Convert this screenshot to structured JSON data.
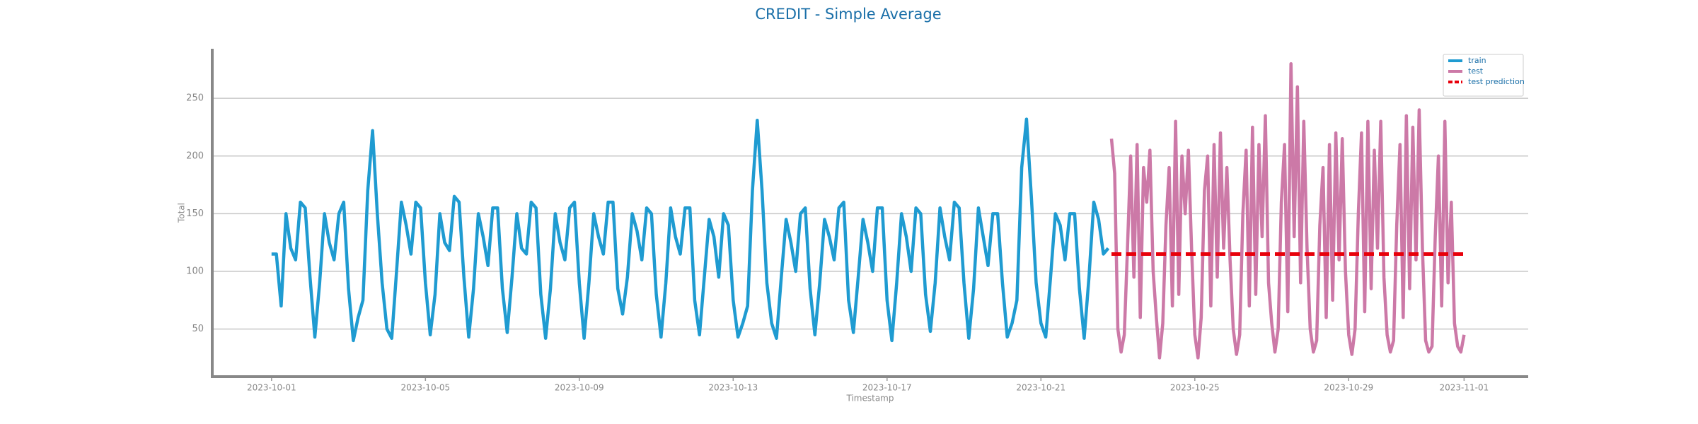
{
  "chart_data": {
    "type": "line",
    "title": "CREDIT - Simple Average",
    "xlabel": "Timestamp",
    "ylabel": "Total",
    "xlim": [
      "2023-09-29 11:00",
      "2023-11-02 16:00"
    ],
    "ylim": [
      8.7,
      293
    ],
    "xticks": [
      "2023-10-01",
      "2023-10-05",
      "2023-10-09",
      "2023-10-13",
      "2023-10-17",
      "2023-10-21",
      "2023-10-25",
      "2023-10-29",
      "2023-11-01"
    ],
    "yticks": [
      50,
      100,
      150,
      200,
      250
    ],
    "grid": true,
    "legend": "upper right",
    "series": [
      {
        "name": "train",
        "color": "#1f9bd1",
        "dash": false,
        "x": [
          "2023-10-01 00:00",
          "2023-10-01 03:00",
          "2023-10-01 06:00",
          "2023-10-01 09:00",
          "2023-10-01 12:00",
          "2023-10-01 15:00",
          "2023-10-01 18:00",
          "2023-10-01 21:00",
          "2023-10-02 00:00",
          "2023-10-02 03:00",
          "2023-10-02 06:00",
          "2023-10-02 09:00",
          "2023-10-02 12:00",
          "2023-10-02 15:00",
          "2023-10-02 18:00",
          "2023-10-02 21:00",
          "2023-10-03 00:00",
          "2023-10-03 03:00",
          "2023-10-03 06:00",
          "2023-10-03 09:00",
          "2023-10-03 12:00",
          "2023-10-03 15:00",
          "2023-10-03 18:00",
          "2023-10-03 21:00",
          "2023-10-04 00:00",
          "2023-10-04 03:00",
          "2023-10-04 06:00",
          "2023-10-04 09:00",
          "2023-10-04 12:00",
          "2023-10-04 15:00",
          "2023-10-04 18:00",
          "2023-10-04 21:00",
          "2023-10-05 00:00",
          "2023-10-05 03:00",
          "2023-10-05 06:00",
          "2023-10-05 09:00",
          "2023-10-05 12:00",
          "2023-10-05 15:00",
          "2023-10-05 18:00",
          "2023-10-05 21:00",
          "2023-10-06 00:00",
          "2023-10-06 03:00",
          "2023-10-06 06:00",
          "2023-10-06 09:00",
          "2023-10-06 12:00",
          "2023-10-06 15:00",
          "2023-10-06 18:00",
          "2023-10-06 21:00",
          "2023-10-07 00:00",
          "2023-10-07 03:00",
          "2023-10-07 06:00",
          "2023-10-07 09:00",
          "2023-10-07 12:00",
          "2023-10-07 15:00",
          "2023-10-07 18:00",
          "2023-10-07 21:00",
          "2023-10-08 00:00",
          "2023-10-08 03:00",
          "2023-10-08 06:00",
          "2023-10-08 09:00",
          "2023-10-08 12:00",
          "2023-10-08 15:00",
          "2023-10-08 18:00",
          "2023-10-08 21:00",
          "2023-10-09 00:00",
          "2023-10-09 03:00",
          "2023-10-09 06:00",
          "2023-10-09 09:00",
          "2023-10-09 12:00",
          "2023-10-09 15:00",
          "2023-10-09 18:00",
          "2023-10-09 21:00",
          "2023-10-10 00:00",
          "2023-10-10 03:00",
          "2023-10-10 06:00",
          "2023-10-10 09:00",
          "2023-10-10 12:00",
          "2023-10-10 15:00",
          "2023-10-10 18:00",
          "2023-10-10 21:00",
          "2023-10-11 00:00",
          "2023-10-11 03:00",
          "2023-10-11 06:00",
          "2023-10-11 09:00",
          "2023-10-11 12:00",
          "2023-10-11 15:00",
          "2023-10-11 18:00",
          "2023-10-11 21:00",
          "2023-10-12 00:00",
          "2023-10-12 03:00",
          "2023-10-12 06:00",
          "2023-10-12 09:00",
          "2023-10-12 12:00",
          "2023-10-12 15:00",
          "2023-10-12 18:00",
          "2023-10-12 21:00",
          "2023-10-13 00:00",
          "2023-10-13 03:00",
          "2023-10-13 06:00",
          "2023-10-13 09:00",
          "2023-10-13 12:00",
          "2023-10-13 15:00",
          "2023-10-13 18:00",
          "2023-10-13 21:00",
          "2023-10-14 00:00",
          "2023-10-14 03:00",
          "2023-10-14 06:00",
          "2023-10-14 09:00",
          "2023-10-14 12:00",
          "2023-10-14 15:00",
          "2023-10-14 18:00",
          "2023-10-14 21:00",
          "2023-10-15 00:00",
          "2023-10-15 03:00",
          "2023-10-15 06:00",
          "2023-10-15 09:00",
          "2023-10-15 12:00",
          "2023-10-15 15:00",
          "2023-10-15 18:00",
          "2023-10-15 21:00",
          "2023-10-16 00:00",
          "2023-10-16 03:00",
          "2023-10-16 06:00",
          "2023-10-16 09:00",
          "2023-10-16 12:00",
          "2023-10-16 15:00",
          "2023-10-16 18:00",
          "2023-10-16 21:00",
          "2023-10-17 00:00",
          "2023-10-17 03:00",
          "2023-10-17 06:00",
          "2023-10-17 09:00",
          "2023-10-17 12:00",
          "2023-10-17 15:00",
          "2023-10-17 18:00",
          "2023-10-17 21:00",
          "2023-10-18 00:00",
          "2023-10-18 03:00",
          "2023-10-18 06:00",
          "2023-10-18 09:00",
          "2023-10-18 12:00",
          "2023-10-18 15:00",
          "2023-10-18 18:00",
          "2023-10-18 21:00",
          "2023-10-19 00:00",
          "2023-10-19 03:00",
          "2023-10-19 06:00",
          "2023-10-19 09:00",
          "2023-10-19 12:00",
          "2023-10-19 15:00",
          "2023-10-19 18:00",
          "2023-10-19 21:00",
          "2023-10-20 00:00",
          "2023-10-20 03:00",
          "2023-10-20 06:00",
          "2023-10-20 09:00",
          "2023-10-20 12:00",
          "2023-10-20 15:00",
          "2023-10-20 18:00",
          "2023-10-20 21:00",
          "2023-10-21 00:00",
          "2023-10-21 03:00",
          "2023-10-21 06:00",
          "2023-10-21 09:00",
          "2023-10-21 12:00",
          "2023-10-21 15:00",
          "2023-10-21 18:00",
          "2023-10-21 21:00",
          "2023-10-22 00:00",
          "2023-10-22 03:00",
          "2023-10-22 06:00",
          "2023-10-22 09:00",
          "2023-10-22 12:00",
          "2023-10-22 15:00",
          "2023-10-22 18:00"
        ],
        "values": [
          115,
          115,
          70,
          150,
          120,
          110,
          160,
          155,
          95,
          43,
          90,
          150,
          125,
          110,
          150,
          160,
          85,
          40,
          60,
          75,
          170,
          222,
          150,
          90,
          50,
          42,
          100,
          160,
          140,
          115,
          160,
          155,
          90,
          45,
          80,
          150,
          125,
          118,
          165,
          160,
          95,
          43,
          85,
          150,
          130,
          105,
          155,
          155,
          85,
          47,
          95,
          150,
          120,
          115,
          160,
          155,
          80,
          42,
          85,
          150,
          125,
          110,
          155,
          160,
          90,
          42,
          90,
          150,
          130,
          115,
          160,
          160,
          85,
          63,
          95,
          150,
          135,
          110,
          155,
          150,
          80,
          43,
          90,
          155,
          130,
          115,
          155,
          155,
          75,
          45,
          95,
          145,
          130,
          95,
          150,
          140,
          75,
          43,
          55,
          70,
          170,
          231,
          170,
          90,
          55,
          42,
          95,
          145,
          125,
          100,
          150,
          155,
          85,
          45,
          90,
          145,
          130,
          110,
          155,
          160,
          75,
          47,
          95,
          145,
          125,
          100,
          155,
          155,
          75,
          40,
          90,
          150,
          130,
          100,
          155,
          150,
          80,
          48,
          90,
          155,
          130,
          110,
          160,
          155,
          90,
          42,
          85,
          155,
          130,
          105,
          150,
          150,
          90,
          43,
          55,
          75,
          190,
          232,
          165,
          90,
          55,
          43,
          95,
          150,
          140,
          110,
          150,
          150,
          85,
          42,
          95,
          160,
          145,
          115,
          120
        ]
      },
      {
        "name": "test",
        "color": "#cc79a7",
        "dash": false,
        "x": [
          "2023-10-22 20:00",
          "2023-10-22 22:00",
          "2023-10-23 00:00",
          "2023-10-23 02:00",
          "2023-10-23 04:00",
          "2023-10-23 06:00",
          "2023-10-23 08:00",
          "2023-10-23 10:00",
          "2023-10-23 12:00",
          "2023-10-23 14:00",
          "2023-10-23 16:00",
          "2023-10-23 18:00",
          "2023-10-23 20:00",
          "2023-10-23 22:00",
          "2023-10-24 00:00",
          "2023-10-24 02:00",
          "2023-10-24 04:00",
          "2023-10-24 06:00",
          "2023-10-24 08:00",
          "2023-10-24 10:00",
          "2023-10-24 12:00",
          "2023-10-24 14:00",
          "2023-10-24 16:00",
          "2023-10-24 18:00",
          "2023-10-24 20:00",
          "2023-10-24 22:00",
          "2023-10-25 00:00",
          "2023-10-25 02:00",
          "2023-10-25 04:00",
          "2023-10-25 06:00",
          "2023-10-25 08:00",
          "2023-10-25 10:00",
          "2023-10-25 12:00",
          "2023-10-25 14:00",
          "2023-10-25 16:00",
          "2023-10-25 18:00",
          "2023-10-25 20:00",
          "2023-10-25 22:00",
          "2023-10-26 00:00",
          "2023-10-26 02:00",
          "2023-10-26 04:00",
          "2023-10-26 06:00",
          "2023-10-26 08:00",
          "2023-10-26 10:00",
          "2023-10-26 12:00",
          "2023-10-26 14:00",
          "2023-10-26 16:00",
          "2023-10-26 18:00",
          "2023-10-26 20:00",
          "2023-10-26 22:00",
          "2023-10-27 00:00",
          "2023-10-27 02:00",
          "2023-10-27 04:00",
          "2023-10-27 06:00",
          "2023-10-27 08:00",
          "2023-10-27 10:00",
          "2023-10-27 12:00",
          "2023-10-27 14:00",
          "2023-10-27 16:00",
          "2023-10-27 18:00",
          "2023-10-27 20:00",
          "2023-10-27 22:00",
          "2023-10-28 00:00",
          "2023-10-28 02:00",
          "2023-10-28 04:00",
          "2023-10-28 06:00",
          "2023-10-28 08:00",
          "2023-10-28 10:00",
          "2023-10-28 12:00",
          "2023-10-28 14:00",
          "2023-10-28 16:00",
          "2023-10-28 18:00",
          "2023-10-28 20:00",
          "2023-10-28 22:00",
          "2023-10-29 00:00",
          "2023-10-29 02:00",
          "2023-10-29 04:00",
          "2023-10-29 06:00",
          "2023-10-29 08:00",
          "2023-10-29 10:00",
          "2023-10-29 12:00",
          "2023-10-29 14:00",
          "2023-10-29 16:00",
          "2023-10-29 18:00",
          "2023-10-29 20:00",
          "2023-10-29 22:00",
          "2023-10-30 00:00",
          "2023-10-30 02:00",
          "2023-10-30 04:00",
          "2023-10-30 06:00",
          "2023-10-30 08:00",
          "2023-10-30 10:00",
          "2023-10-30 12:00",
          "2023-10-30 14:00",
          "2023-10-30 16:00",
          "2023-10-30 18:00",
          "2023-10-30 20:00",
          "2023-10-30 22:00",
          "2023-10-31 00:00",
          "2023-10-31 02:00",
          "2023-10-31 04:00",
          "2023-10-31 06:00",
          "2023-10-31 08:00",
          "2023-10-31 10:00",
          "2023-10-31 12:00",
          "2023-10-31 14:00",
          "2023-10-31 16:00",
          "2023-10-31 18:00",
          "2023-10-31 20:00",
          "2023-10-31 22:00",
          "2023-11-01 00:00"
        ],
        "values": [
          215,
          185,
          50,
          30,
          45,
          120,
          200,
          95,
          210,
          60,
          190,
          160,
          205,
          100,
          60,
          25,
          55,
          140,
          190,
          70,
          230,
          80,
          200,
          150,
          205,
          120,
          45,
          25,
          60,
          170,
          200,
          70,
          210,
          95,
          220,
          120,
          190,
          110,
          50,
          28,
          45,
          150,
          205,
          70,
          225,
          80,
          210,
          130,
          235,
          90,
          55,
          30,
          50,
          160,
          210,
          65,
          280,
          130,
          260,
          90,
          230,
          120,
          50,
          30,
          40,
          140,
          190,
          60,
          210,
          75,
          220,
          110,
          215,
          100,
          45,
          28,
          50,
          150,
          220,
          65,
          230,
          85,
          205,
          120,
          230,
          95,
          45,
          30,
          40,
          140,
          210,
          60,
          235,
          85,
          225,
          110,
          240,
          120,
          40,
          30,
          35,
          130,
          200,
          70,
          230,
          90,
          160,
          55,
          35,
          30,
          45
        ]
      },
      {
        "name": "test prediction",
        "color": "#e8000b",
        "dash": true,
        "x": [
          "2023-10-22 20:00",
          "2023-11-01 00:00"
        ],
        "values": [
          115,
          115
        ]
      }
    ]
  }
}
